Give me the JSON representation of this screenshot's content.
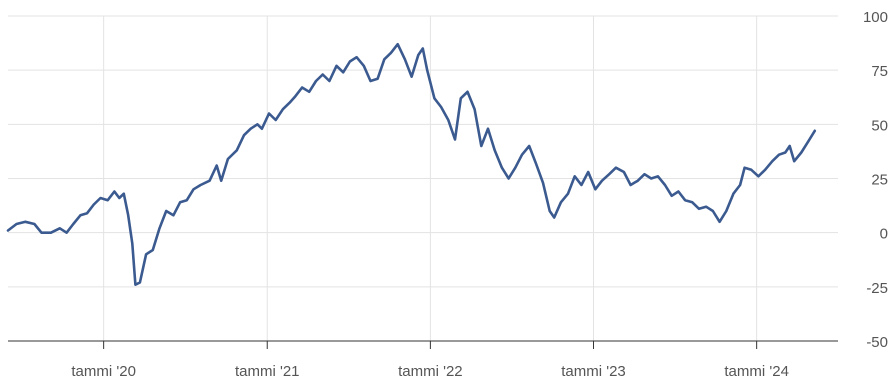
{
  "chart_data": {
    "type": "line",
    "title": "",
    "xlabel": "",
    "ylabel": "",
    "ylim": [
      -50,
      100
    ],
    "xlim": [
      "2019-06-01",
      "2024-07-01"
    ],
    "y_ticks": [
      {
        "value": 100,
        "label": "100"
      },
      {
        "value": 75,
        "label": "75"
      },
      {
        "value": 50,
        "label": "50"
      },
      {
        "value": 25,
        "label": "25"
      },
      {
        "value": 0,
        "label": "0"
      },
      {
        "value": -25,
        "label": "-25"
      },
      {
        "value": -50,
        "label": "-50"
      }
    ],
    "x_ticks": [
      {
        "value": "2020-01-01",
        "label": "tammi '20"
      },
      {
        "value": "2021-01-01",
        "label": "tammi '21"
      },
      {
        "value": "2022-01-01",
        "label": "tammi '22"
      },
      {
        "value": "2023-01-01",
        "label": "tammi '23"
      },
      {
        "value": "2024-01-01",
        "label": "tammi '24"
      }
    ],
    "grid": true,
    "line_color": "#3b5a8f",
    "series": [
      {
        "points": [
          [
            "2019-06-01",
            1
          ],
          [
            "2019-06-20",
            4
          ],
          [
            "2019-07-10",
            5
          ],
          [
            "2019-07-30",
            4
          ],
          [
            "2019-08-15",
            0
          ],
          [
            "2019-09-05",
            0
          ],
          [
            "2019-09-25",
            2
          ],
          [
            "2019-10-10",
            0
          ],
          [
            "2019-10-25",
            4
          ],
          [
            "2019-11-10",
            8
          ],
          [
            "2019-11-25",
            9
          ],
          [
            "2019-12-10",
            13
          ],
          [
            "2019-12-25",
            16
          ],
          [
            "2020-01-10",
            15
          ],
          [
            "2020-01-25",
            19
          ],
          [
            "2020-02-05",
            16
          ],
          [
            "2020-02-15",
            18
          ],
          [
            "2020-02-25",
            8
          ],
          [
            "2020-03-05",
            -5
          ],
          [
            "2020-03-12",
            -24
          ],
          [
            "2020-03-22",
            -23
          ],
          [
            "2020-04-05",
            -10
          ],
          [
            "2020-04-20",
            -8
          ],
          [
            "2020-05-05",
            2
          ],
          [
            "2020-05-20",
            10
          ],
          [
            "2020-06-05",
            8
          ],
          [
            "2020-06-20",
            14
          ],
          [
            "2020-07-05",
            15
          ],
          [
            "2020-07-20",
            20
          ],
          [
            "2020-08-05",
            22
          ],
          [
            "2020-08-25",
            24
          ],
          [
            "2020-09-10",
            31
          ],
          [
            "2020-09-20",
            24
          ],
          [
            "2020-10-05",
            34
          ],
          [
            "2020-10-25",
            38
          ],
          [
            "2020-11-10",
            45
          ],
          [
            "2020-11-25",
            48
          ],
          [
            "2020-12-10",
            50
          ],
          [
            "2020-12-20",
            48
          ],
          [
            "2021-01-05",
            55
          ],
          [
            "2021-01-20",
            52
          ],
          [
            "2021-02-05",
            57
          ],
          [
            "2021-02-20",
            60
          ],
          [
            "2021-03-05",
            63
          ],
          [
            "2021-03-20",
            67
          ],
          [
            "2021-04-05",
            65
          ],
          [
            "2021-04-20",
            70
          ],
          [
            "2021-05-05",
            73
          ],
          [
            "2021-05-20",
            70
          ],
          [
            "2021-06-05",
            77
          ],
          [
            "2021-06-20",
            74
          ],
          [
            "2021-07-05",
            79
          ],
          [
            "2021-07-20",
            81
          ],
          [
            "2021-08-05",
            77
          ],
          [
            "2021-08-20",
            70
          ],
          [
            "2021-09-05",
            71
          ],
          [
            "2021-09-20",
            80
          ],
          [
            "2021-10-05",
            83
          ],
          [
            "2021-10-20",
            87
          ],
          [
            "2021-11-05",
            80
          ],
          [
            "2021-11-20",
            72
          ],
          [
            "2021-12-05",
            82
          ],
          [
            "2021-12-15",
            85
          ],
          [
            "2021-12-25",
            75
          ],
          [
            "2022-01-10",
            62
          ],
          [
            "2022-01-25",
            58
          ],
          [
            "2022-02-10",
            52
          ],
          [
            "2022-02-25",
            43
          ],
          [
            "2022-03-10",
            62
          ],
          [
            "2022-03-25",
            65
          ],
          [
            "2022-04-10",
            57
          ],
          [
            "2022-04-25",
            40
          ],
          [
            "2022-05-10",
            48
          ],
          [
            "2022-05-25",
            38
          ],
          [
            "2022-06-10",
            30
          ],
          [
            "2022-06-25",
            25
          ],
          [
            "2022-07-10",
            30
          ],
          [
            "2022-07-25",
            36
          ],
          [
            "2022-08-10",
            40
          ],
          [
            "2022-08-25",
            32
          ],
          [
            "2022-09-10",
            23
          ],
          [
            "2022-09-25",
            10
          ],
          [
            "2022-10-05",
            7
          ],
          [
            "2022-10-20",
            14
          ],
          [
            "2022-11-05",
            18
          ],
          [
            "2022-11-20",
            26
          ],
          [
            "2022-12-05",
            22
          ],
          [
            "2022-12-20",
            28
          ],
          [
            "2023-01-05",
            20
          ],
          [
            "2023-01-20",
            24
          ],
          [
            "2023-02-05",
            27
          ],
          [
            "2023-02-20",
            30
          ],
          [
            "2023-03-10",
            28
          ],
          [
            "2023-03-25",
            22
          ],
          [
            "2023-04-10",
            24
          ],
          [
            "2023-04-25",
            27
          ],
          [
            "2023-05-10",
            25
          ],
          [
            "2023-05-25",
            26
          ],
          [
            "2023-06-10",
            22
          ],
          [
            "2023-06-25",
            17
          ],
          [
            "2023-07-10",
            19
          ],
          [
            "2023-07-25",
            15
          ],
          [
            "2023-08-10",
            14
          ],
          [
            "2023-08-25",
            11
          ],
          [
            "2023-09-10",
            12
          ],
          [
            "2023-09-25",
            10
          ],
          [
            "2023-10-10",
            5
          ],
          [
            "2023-10-25",
            10
          ],
          [
            "2023-11-10",
            18
          ],
          [
            "2023-11-25",
            22
          ],
          [
            "2023-12-05",
            30
          ],
          [
            "2023-12-20",
            29
          ],
          [
            "2024-01-05",
            26
          ],
          [
            "2024-01-20",
            29
          ],
          [
            "2024-02-05",
            33
          ],
          [
            "2024-02-20",
            36
          ],
          [
            "2024-03-05",
            37
          ],
          [
            "2024-03-15",
            40
          ],
          [
            "2024-03-25",
            33
          ],
          [
            "2024-04-10",
            37
          ],
          [
            "2024-04-25",
            42
          ],
          [
            "2024-05-10",
            47
          ]
        ]
      }
    ]
  }
}
